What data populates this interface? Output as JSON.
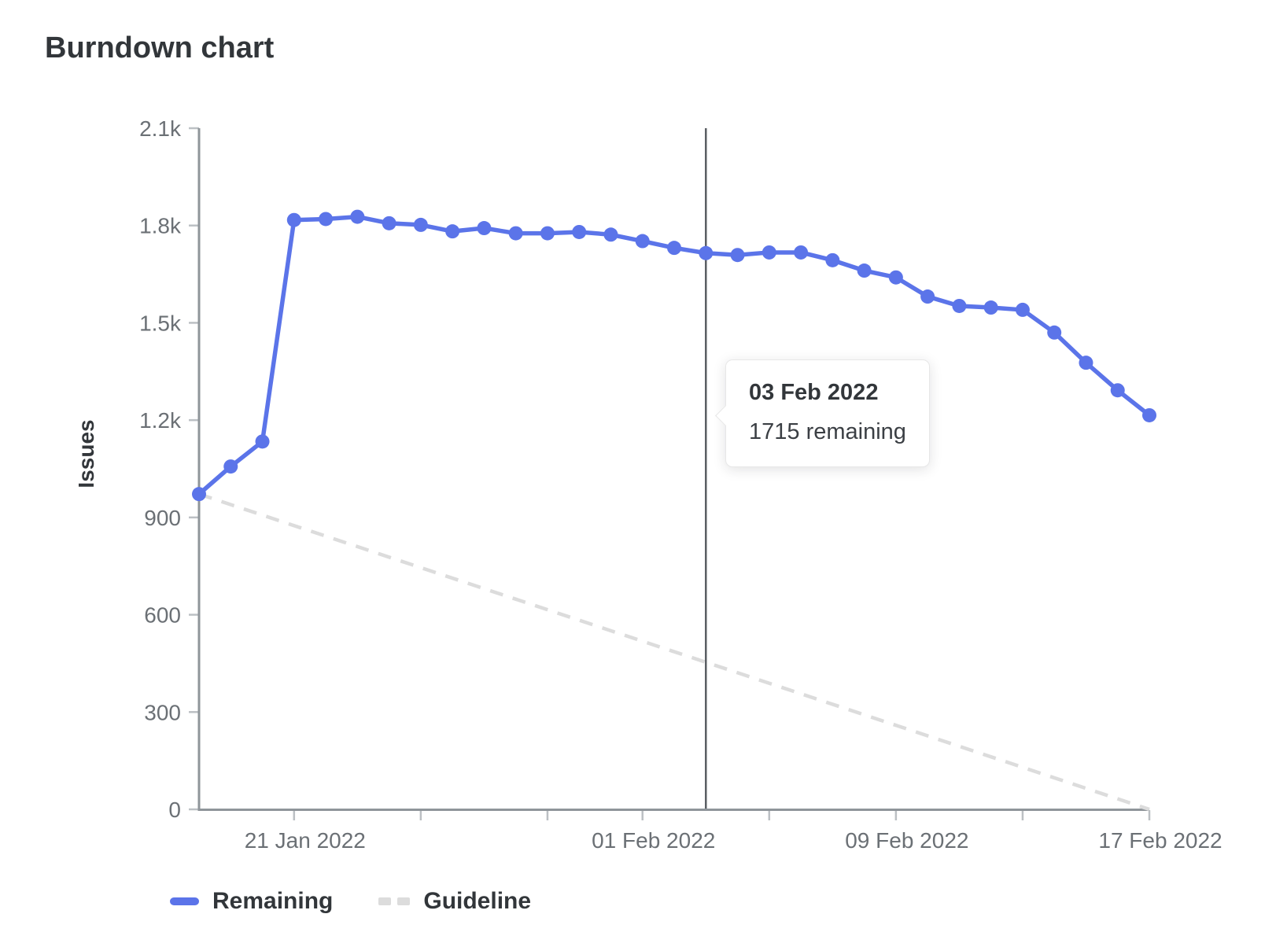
{
  "title": "Burndown chart",
  "chart_data": {
    "type": "line",
    "title": "Burndown chart",
    "xlabel": "",
    "ylabel": "Issues",
    "ylim": [
      0,
      2100
    ],
    "grid": false,
    "legend_position": "bottom-left",
    "x_dates": [
      "18 Jan 2022",
      "19 Jan 2022",
      "20 Jan 2022",
      "21 Jan 2022",
      "22 Jan 2022",
      "23 Jan 2022",
      "24 Jan 2022",
      "25 Jan 2022",
      "26 Jan 2022",
      "27 Jan 2022",
      "28 Jan 2022",
      "29 Jan 2022",
      "30 Jan 2022",
      "31 Jan 2022",
      "01 Feb 2022",
      "02 Feb 2022",
      "03 Feb 2022",
      "04 Feb 2022",
      "05 Feb 2022",
      "06 Feb 2022",
      "07 Feb 2022",
      "08 Feb 2022",
      "09 Feb 2022",
      "10 Feb 2022",
      "11 Feb 2022",
      "12 Feb 2022",
      "13 Feb 2022",
      "14 Feb 2022",
      "15 Feb 2022",
      "16 Feb 2022",
      "17 Feb 2022"
    ],
    "series": [
      {
        "name": "Remaining",
        "style": "solid",
        "color": "#5b74e9",
        "values": [
          972,
          1057,
          1134,
          1817,
          1820,
          1827,
          1807,
          1802,
          1782,
          1792,
          1776,
          1776,
          1780,
          1772,
          1752,
          1731,
          1715,
          1709,
          1717,
          1717,
          1693,
          1661,
          1640,
          1581,
          1552,
          1547,
          1540,
          1470,
          1377,
          1292,
          1215
        ]
      },
      {
        "name": "Guideline",
        "style": "dashed",
        "color": "#dcdcdc",
        "endpoints": {
          "start_index": 0,
          "start_value": 972,
          "end_index": 30,
          "end_value": 0
        }
      }
    ],
    "y_ticks": [
      {
        "value": 0,
        "label": "0"
      },
      {
        "value": 300,
        "label": "300"
      },
      {
        "value": 600,
        "label": "600"
      },
      {
        "value": 900,
        "label": "900"
      },
      {
        "value": 1200,
        "label": "1.2k"
      },
      {
        "value": 1500,
        "label": "1.5k"
      },
      {
        "value": 1800,
        "label": "1.8k"
      },
      {
        "value": 2100,
        "label": "2.1k"
      }
    ],
    "x_ticks": [
      {
        "index": 3,
        "label": "21 Jan 2022"
      },
      {
        "index": 7,
        "label": ""
      },
      {
        "index": 11,
        "label": ""
      },
      {
        "index": 14,
        "label": "01 Feb 2022"
      },
      {
        "index": 18,
        "label": ""
      },
      {
        "index": 22,
        "label": "09 Feb 2022"
      },
      {
        "index": 26,
        "label": ""
      },
      {
        "index": 30,
        "label": "17 Feb 2022"
      }
    ]
  },
  "tooltip": {
    "date": "03 Feb 2022",
    "value_text": "1715 remaining",
    "hover_index": 16
  },
  "legend": {
    "items": [
      {
        "label": "Remaining",
        "swatch": "solid-line"
      },
      {
        "label": "Guideline",
        "swatch": "dashed-line"
      }
    ]
  },
  "colors": {
    "remaining": "#5b74e9",
    "guideline": "#dcdcdc",
    "axis": "#8f959a",
    "axis_tick": "#bcc0c4",
    "hover_line": "#5a5e63",
    "text_dark": "#32363a",
    "text_muted": "#6b7075"
  }
}
